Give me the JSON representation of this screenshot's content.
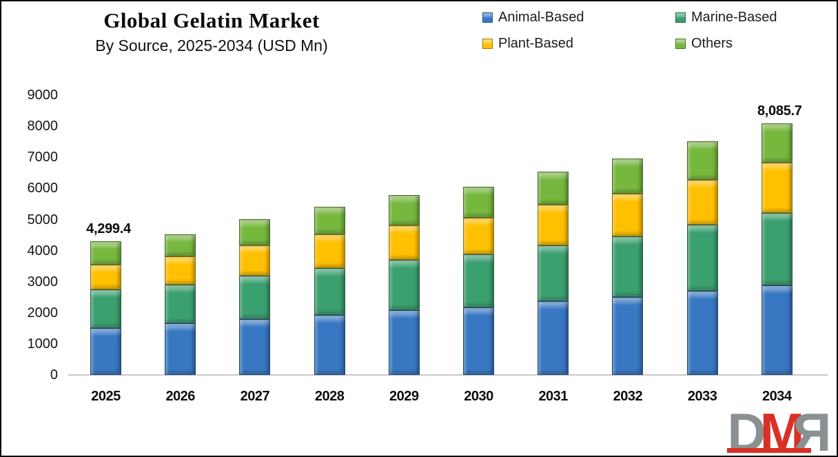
{
  "title": "Global Gelatin Market",
  "subtitle": "By Source, 2025-2034 (USD Mn)",
  "legend": [
    {
      "label": "Animal-Based",
      "color": "#3878C2"
    },
    {
      "label": "Marine-Based",
      "color": "#3BA070"
    },
    {
      "label": "Plant-Based",
      "color": "#FFC000"
    },
    {
      "label": "Others",
      "color": "#76B73E"
    }
  ],
  "chart_data": {
    "type": "bar",
    "stacked": true,
    "title": "Global Gelatin Market",
    "subtitle": "By Source, 2025-2034 (USD Mn)",
    "xlabel": "",
    "ylabel": "",
    "categories": [
      "2025",
      "2026",
      "2027",
      "2028",
      "2029",
      "2030",
      "2031",
      "2032",
      "2033",
      "2034"
    ],
    "series": [
      {
        "name": "Animal-Based",
        "color": "#3878C2",
        "values": [
          1515,
          1660,
          1800,
          1930,
          2090,
          2165,
          2370,
          2500,
          2700,
          2890
        ]
      },
      {
        "name": "Marine-Based",
        "color": "#3BA070",
        "values": [
          1228,
          1245,
          1400,
          1505,
          1610,
          1715,
          1805,
          1955,
          2130,
          2320
        ]
      },
      {
        "name": "Plant-Based",
        "color": "#FFC000",
        "values": [
          811,
          900,
          975,
          1095,
          1110,
          1180,
          1295,
          1370,
          1440,
          1625
        ]
      },
      {
        "name": "Others",
        "color": "#76B73E",
        "values": [
          745.4,
          725,
          835,
          890,
          975,
          1000,
          1070,
          1145,
          1240,
          1250.7
        ]
      }
    ],
    "totals": [
      4299.4,
      4530,
      5010,
      5420,
      5785,
      6060,
      6540,
      6970,
      7510,
      8085.7
    ],
    "annotations": [
      {
        "category_index": 0,
        "text": "4,299.4"
      },
      {
        "category_index": 9,
        "text": "8,085.7"
      }
    ],
    "ylim": [
      0,
      9000
    ],
    "ytick_step": 1000,
    "grid": false,
    "legend_position": "top-right"
  },
  "watermark": {
    "letters": [
      "D",
      "M",
      "R"
    ],
    "gray": "#8b9192",
    "red": "#d93025"
  }
}
